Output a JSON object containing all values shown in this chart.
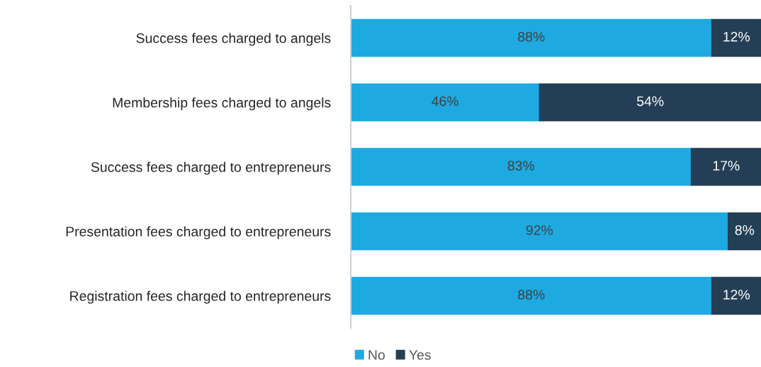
{
  "chart_data": {
    "type": "bar",
    "orientation": "horizontal",
    "stacked": true,
    "legend": "bottom",
    "categories": [
      "Success fees charged to angels",
      "Membership fees charged to angels",
      "Success fees charged to entrepreneurs",
      "Presentation fees charged to entrepreneurs",
      "Registration fees charged to entrepreneurs"
    ],
    "series": [
      {
        "name": "No",
        "color": "#1eaae1",
        "values": [
          88,
          46,
          83,
          92,
          88
        ],
        "value_labels": [
          "88%",
          "46%",
          "83%",
          "92%",
          "88%"
        ]
      },
      {
        "name": "Yes",
        "color": "#243f55",
        "values": [
          12,
          54,
          17,
          8,
          12
        ],
        "value_labels": [
          "12%",
          "54%",
          "17%",
          "8%",
          "12%"
        ]
      }
    ]
  }
}
